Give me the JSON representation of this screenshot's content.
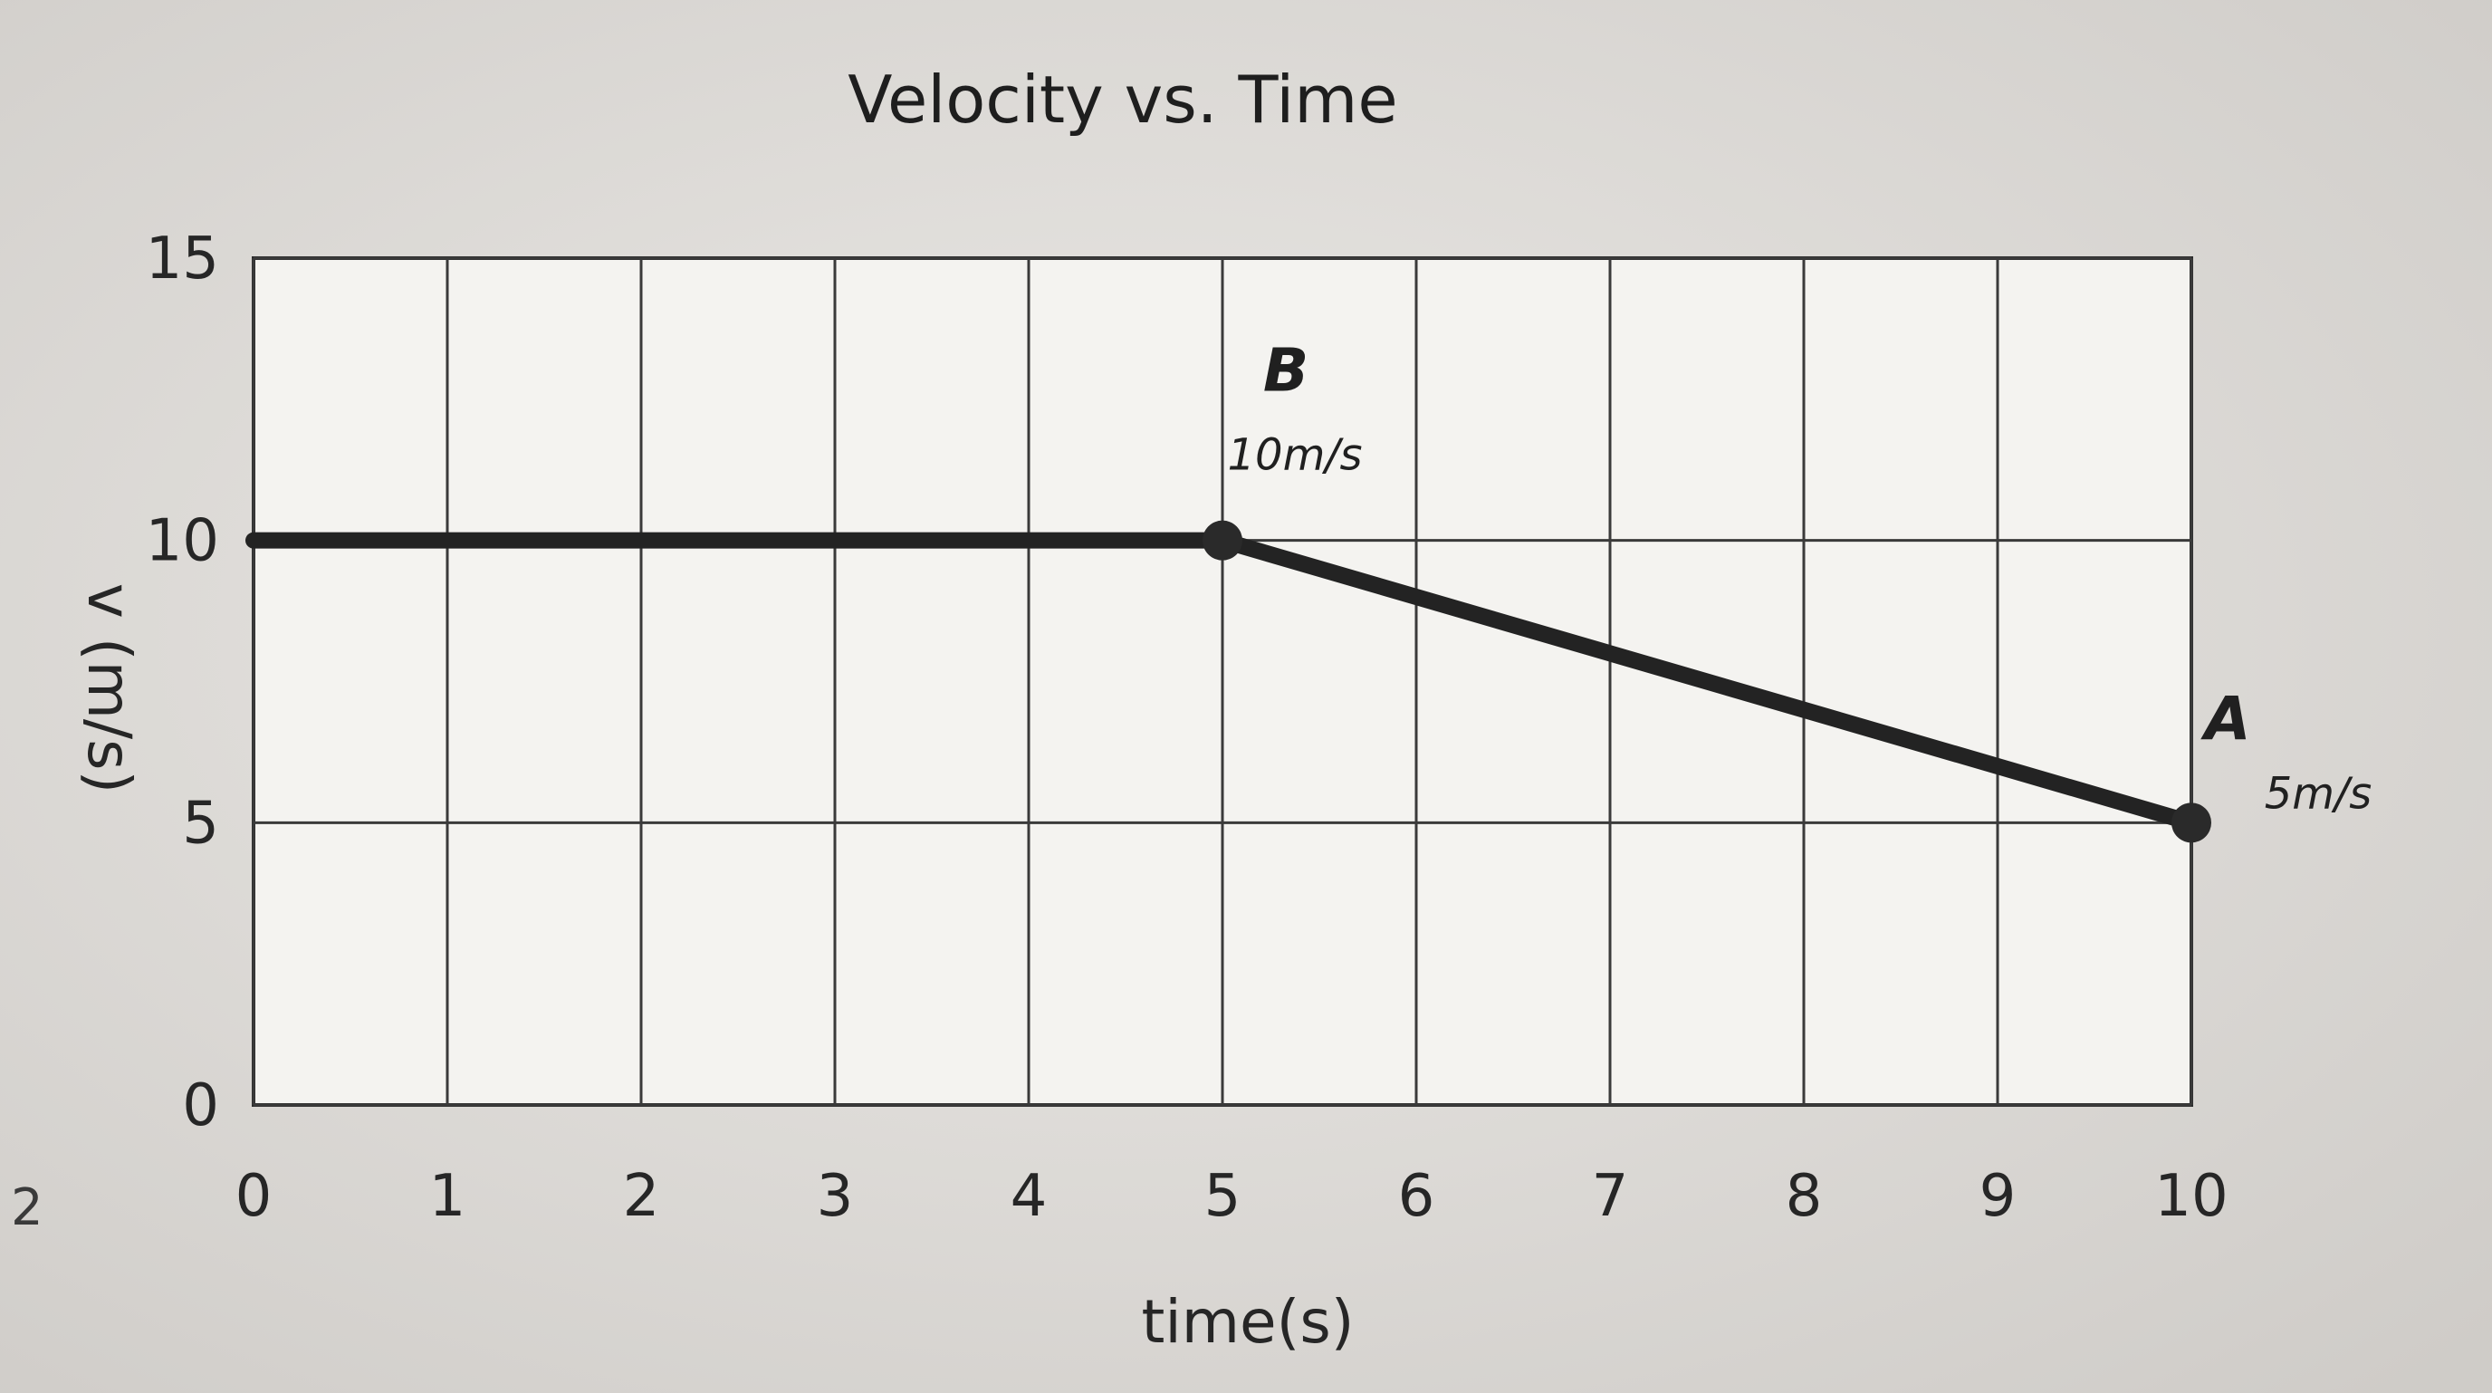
{
  "chart_data": {
    "type": "line",
    "title": "Velocity vs. Time",
    "xlabel": "time(s)",
    "ylabel": "v (m/s)",
    "xlim": [
      0,
      10
    ],
    "ylim": [
      0,
      15
    ],
    "x_ticks": [
      "0",
      "1",
      "2",
      "3",
      "4",
      "5",
      "6",
      "7",
      "8",
      "9",
      "10"
    ],
    "y_ticks": [
      "0",
      "5",
      "10",
      "15"
    ],
    "grid": true,
    "series": [
      {
        "x": [
          0,
          5,
          10
        ],
        "y": [
          10,
          10,
          5
        ]
      }
    ],
    "annotations": [
      {
        "letter": "B",
        "text": "10m/s",
        "x": 5,
        "y": 10
      },
      {
        "letter": "A",
        "text": "5m/s",
        "x": 10,
        "y": 5
      }
    ]
  },
  "page": {
    "stray_mark": "2",
    "paper_color": "#e6e4e0",
    "ink_color": "#232323"
  }
}
